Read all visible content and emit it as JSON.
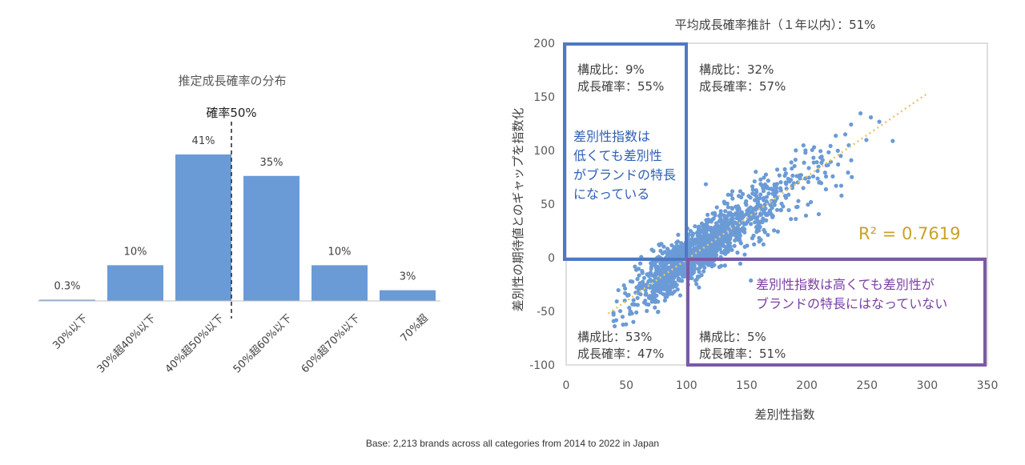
{
  "footnote": "Base: 2,213 brands across all categories from 2014 to 2022 in Japan",
  "chart_data": [
    {
      "type": "bar",
      "title": "推定成長確率の分布",
      "categories": [
        "30%以下",
        "30%超40%以下",
        "40%超50%以下",
        "50%超60%以下",
        "60%超70%以下",
        "70%超"
      ],
      "values": [
        0.3,
        10,
        41,
        35,
        10,
        3
      ],
      "value_labels": [
        "0.3%",
        "10%",
        "41%",
        "35%",
        "10%",
        "3%"
      ],
      "ylim": [
        0,
        45
      ],
      "bar_color": "#6b9bd6",
      "annotations": [
        {
          "text": "確率50%",
          "style": "dashed vertical line between 40%超50%以下 and 50%超60%以下"
        }
      ],
      "grid": false
    },
    {
      "type": "scatter",
      "title": "平均成長確率推計（１年以内）：51%",
      "xlabel": "差別性指数",
      "ylabel": "差別性の期待値とのギャップを指数化",
      "xlim": [
        0,
        350
      ],
      "ylim": [
        -100,
        200
      ],
      "xticks": [
        0,
        50,
        100,
        150,
        200,
        250,
        300,
        350
      ],
      "yticks": [
        -100,
        -50,
        0,
        50,
        100,
        150,
        200
      ],
      "point_color": "#6b9bd6",
      "trendline": {
        "style": "dotted",
        "color": "#e8c56a",
        "x": [
          35,
          300
        ],
        "y": [
          -52,
          153
        ]
      },
      "r_squared_label": "R² = 0.7619",
      "r_squared_color": "#c9a227",
      "quadrants": [
        {
          "share": "構成比：9%",
          "prob": "成長確率：55%"
        },
        {
          "share": "構成比：32%",
          "prob": "成長確率：57%"
        },
        {
          "share": "構成比：53%",
          "prob": "成長確率：47%"
        },
        {
          "share": "構成比：5%",
          "prob": "成長確率：51%"
        }
      ],
      "callouts": [
        {
          "lines": [
            "差別性指数は",
            "低くても差別性",
            "がブランドの特長",
            "になっている"
          ],
          "color": "#2e5fb5"
        },
        {
          "lines": [
            "差別性指数は高くても差別性が",
            "ブランドの特長にはなっていない"
          ],
          "color": "#7a3fa5"
        }
      ],
      "highlight_boxes": [
        {
          "quadrant": "top-left",
          "color": "#4f79c4"
        },
        {
          "quadrant": "bottom-right",
          "color": "#7a5aa6"
        }
      ],
      "grid": false
    }
  ]
}
